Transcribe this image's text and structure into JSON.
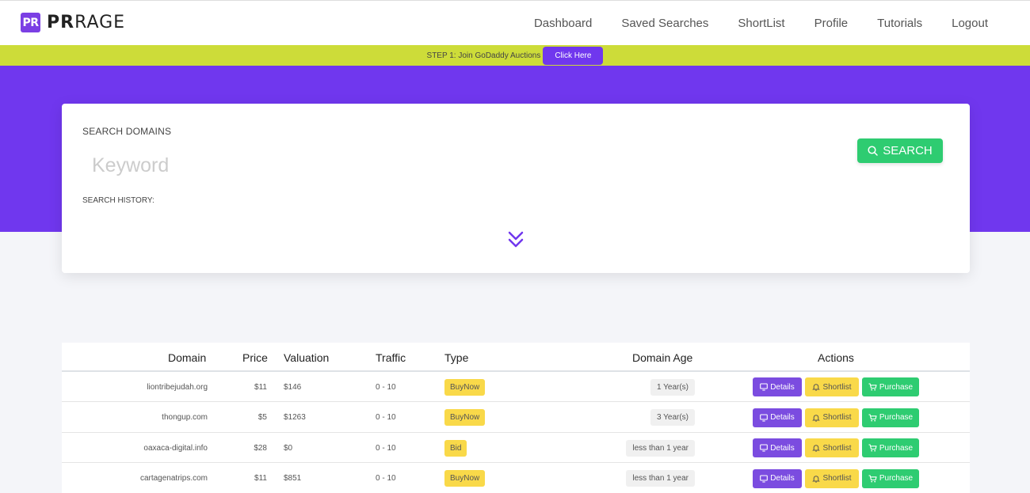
{
  "brand": {
    "badge": "PR",
    "name_bold": "PR",
    "name_light": "RAGE"
  },
  "nav": [
    "Dashboard",
    "Saved Searches",
    "ShortList",
    "Profile",
    "Tutorials",
    "Logout"
  ],
  "promo": {
    "text": "STEP 1: Join GoDaddy Auctions",
    "button": "Click Here"
  },
  "search": {
    "title": "SEARCH DOMAINS",
    "placeholder": "Keyword",
    "history_label": "SEARCH HISTORY:",
    "button": "SEARCH"
  },
  "table": {
    "headers": {
      "domain": "Domain",
      "price": "Price",
      "valuation": "Valuation",
      "traffic": "Traffic",
      "type": "Type",
      "age": "Domain Age",
      "actions": "Actions"
    },
    "action_labels": {
      "details": "Details",
      "shortlist": "Shortlist",
      "purchase": "Purchase"
    },
    "rows": [
      {
        "domain": "liontribejudah.org",
        "price": "$11",
        "valuation": "$146",
        "traffic": "0 - 10",
        "type": "BuyNow",
        "age": "1 Year(s)"
      },
      {
        "domain": "thongup.com",
        "price": "$5",
        "valuation": "$1263",
        "traffic": "0 - 10",
        "type": "BuyNow",
        "age": "3 Year(s)"
      },
      {
        "domain": "oaxaca-digital.info",
        "price": "$28",
        "valuation": "$0",
        "traffic": "0 - 10",
        "type": "Bid",
        "age": "less than 1 year"
      },
      {
        "domain": "cartagenatrips.com",
        "price": "$11",
        "valuation": "$851",
        "traffic": "0 - 10",
        "type": "BuyNow",
        "age": "less than 1 year"
      }
    ]
  },
  "colors": {
    "primary": "#7037ee",
    "promo_bar": "#cddc39",
    "success": "#2ecc71",
    "warning": "#f9d949"
  },
  "icons": {
    "search": "search-icon",
    "expand": "double-chevron-down-icon",
    "details": "monitor-icon",
    "shortlist": "bell-icon",
    "purchase": "cart-icon"
  }
}
